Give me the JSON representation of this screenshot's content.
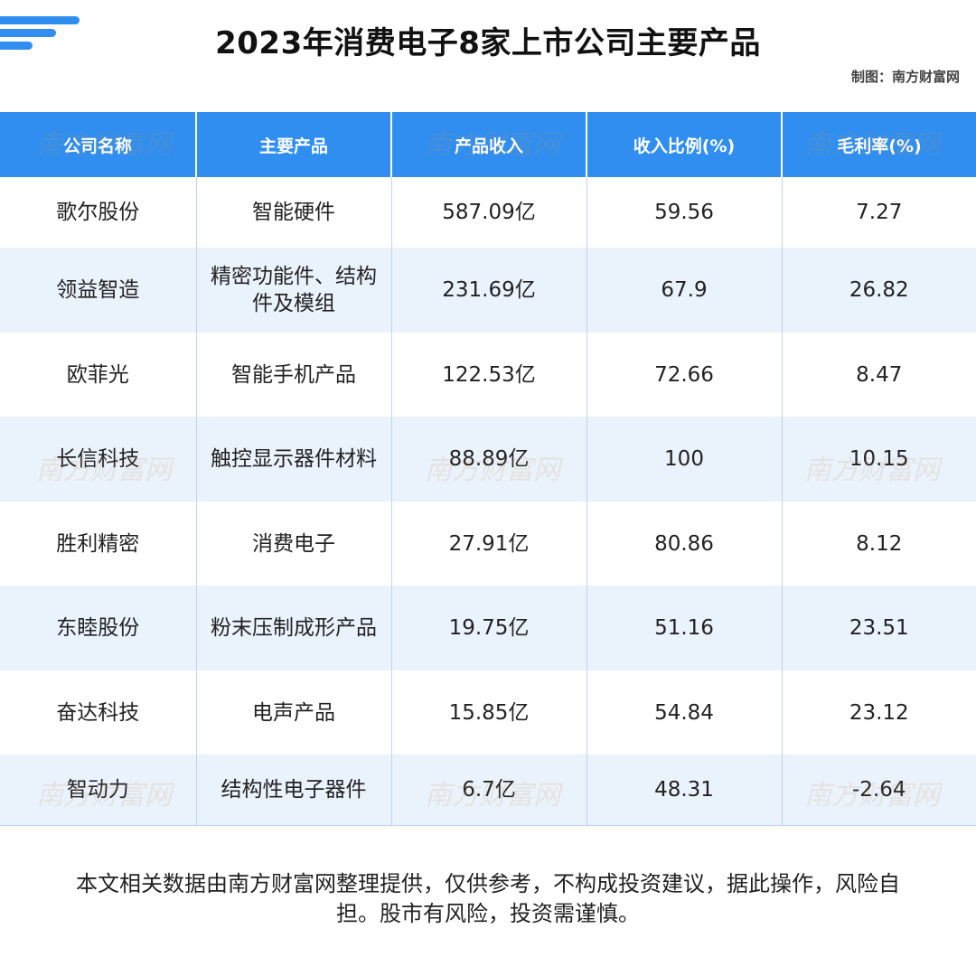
{
  "title": "2023年消费电子8家上市公司主要产品",
  "credit": "制图：南方财富网",
  "table": {
    "headers": [
      "公司名称",
      "主要产品",
      "产品收入",
      "收入比例(%)",
      "毛利率(%)"
    ],
    "rows": [
      [
        "歌尔股份",
        "智能硬件",
        "587.09亿",
        "59.56",
        "7.27"
      ],
      [
        "领益智造",
        "精密功能件、结构件及模组",
        "231.69亿",
        "67.9",
        "26.82"
      ],
      [
        "欧菲光",
        "智能手机产品",
        "122.53亿",
        "72.66",
        "8.47"
      ],
      [
        "长信科技",
        "触控显示器件材料",
        "88.89亿",
        "100",
        "10.15"
      ],
      [
        "胜利精密",
        "消费电子",
        "27.91亿",
        "80.86",
        "8.12"
      ],
      [
        "东睦股份",
        "粉末压制成形产品",
        "19.75亿",
        "51.16",
        "23.51"
      ],
      [
        "奋达科技",
        "电声产品",
        "15.85亿",
        "54.84",
        "23.12"
      ],
      [
        "智动力",
        "结构性电子器件",
        "6.7亿",
        "48.31",
        "-2.64"
      ]
    ]
  },
  "watermark": "南方财富网",
  "disclaimer": "本文相关数据由南方财富网整理提供，仅供参考，不构成投资建议，据此操作，风险自担。股市有风险，投资需谨慎。",
  "colors": {
    "header_bg": "#2f8ef0",
    "row_alt_bg": "#eaf2fc",
    "logo_blue": "#2f8ef0"
  }
}
